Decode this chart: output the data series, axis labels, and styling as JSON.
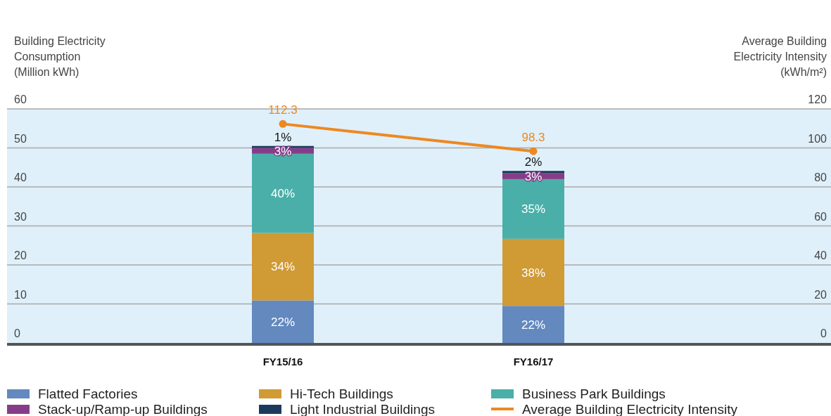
{
  "chart_data": {
    "type": "bar",
    "stacked": true,
    "ylabel": "Building Electricity\nConsumption\n(Million kWh)",
    "y2label": "Average Building\nElectricity Intensity\n(kWh/m²)",
    "categories": [
      "FY15/16",
      "FY16/17"
    ],
    "series": [
      {
        "name": "Flatted Factories",
        "color": "#6389bf",
        "values": [
          10.9,
          9.5
        ]
      },
      {
        "name": "Hi-Tech Buildings",
        "color": "#d09a35",
        "values": [
          17.3,
          17.2
        ]
      },
      {
        "name": "Business Park Buildings",
        "color": "#4aafa8",
        "values": [
          20.3,
          15.3
        ]
      },
      {
        "name": "Stack-up/Ramp-up Buildings",
        "color": "#863d89",
        "values": [
          1.5,
          1.5
        ]
      },
      {
        "name": "Light Industrial Buildings",
        "color": "#1c3a5c",
        "values": [
          0.5,
          0.6
        ]
      },
      {
        "name": "Average Building Electricity Intensity",
        "type": "line",
        "axis": "y2",
        "color": "#ee8820",
        "values": [
          112.3,
          98.3
        ],
        "value_labels": [
          "112.3",
          "98.3"
        ],
        "marker": "circle"
      }
    ],
    "annotations": [
      "22%",
      "34%",
      "40%",
      "3%",
      "1%",
      "22%",
      "38%",
      "35%",
      "3%",
      "2%"
    ],
    "ylim": [
      0,
      60
    ],
    "yticks": [
      0,
      10,
      20,
      30,
      40,
      50,
      60
    ],
    "y2lim": [
      0,
      120
    ],
    "y2ticks": [
      0,
      20,
      40,
      60,
      80,
      100,
      120
    ],
    "grid": "y",
    "legend": "bottom"
  }
}
